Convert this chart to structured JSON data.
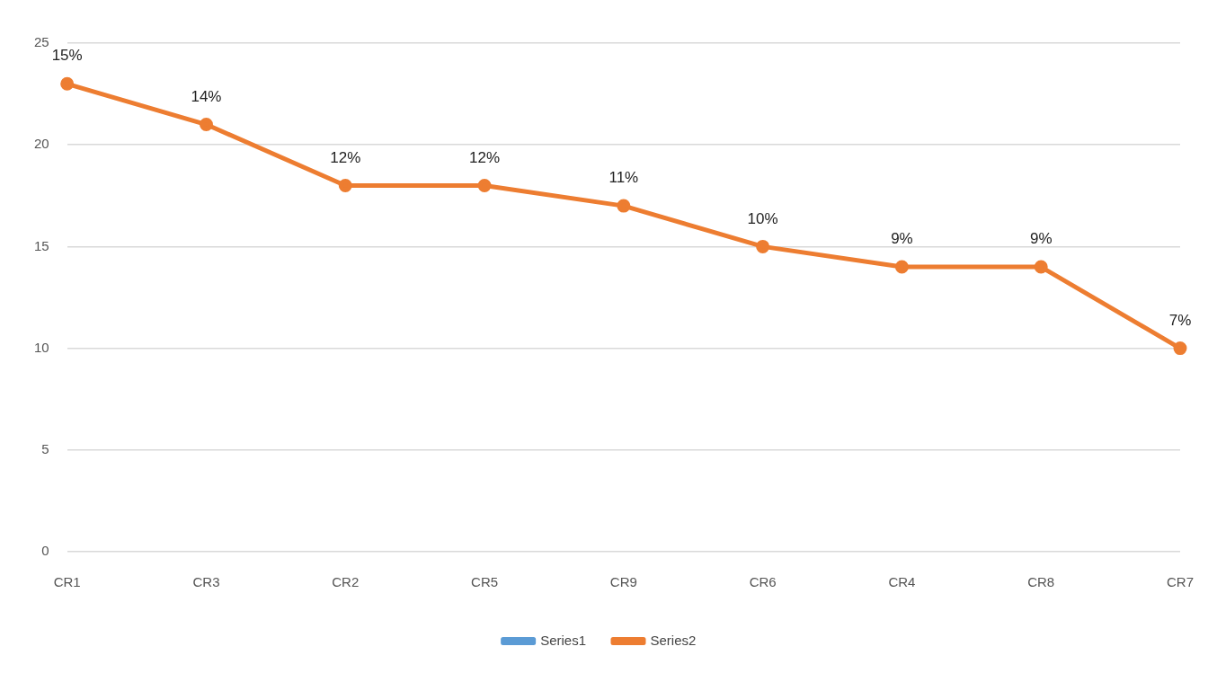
{
  "chart_data": {
    "type": "line",
    "categories": [
      "CR1",
      "CR3",
      "CR2",
      "CR5",
      "CR9",
      "CR6",
      "CR4",
      "CR8",
      "CR7"
    ],
    "series": [
      {
        "name": "Series1",
        "color": "#5b9bd5",
        "values": [
          null,
          null,
          null,
          null,
          null,
          null,
          null,
          null,
          null
        ]
      },
      {
        "name": "Series2",
        "color": "#ed7d31",
        "values": [
          23,
          21,
          18,
          18,
          17,
          15,
          14,
          14,
          10
        ]
      }
    ],
    "annotations": [
      {
        "text": "15%",
        "x": "CR1",
        "y": 23
      },
      {
        "text": "14%",
        "x": "CR3",
        "y": 21
      },
      {
        "text": "12%",
        "x": "CR2",
        "y": 18
      },
      {
        "text": "12%",
        "x": "CR5",
        "y": 18
      },
      {
        "text": "11%",
        "x": "CR9",
        "y": 17
      },
      {
        "text": "10%",
        "x": "CR6",
        "y": 15
      },
      {
        "text": "9%",
        "x": "CR4",
        "y": 14
      },
      {
        "text": "9%",
        "x": "CR8",
        "y": 14
      },
      {
        "text": "7%",
        "x": "CR7",
        "y": 10
      }
    ],
    "ylim": [
      0,
      25
    ],
    "yticks": [
      0,
      5,
      10,
      15,
      20,
      25
    ],
    "grid": "y",
    "legend": "bottom",
    "marker": "circle",
    "line_style": "solid"
  }
}
